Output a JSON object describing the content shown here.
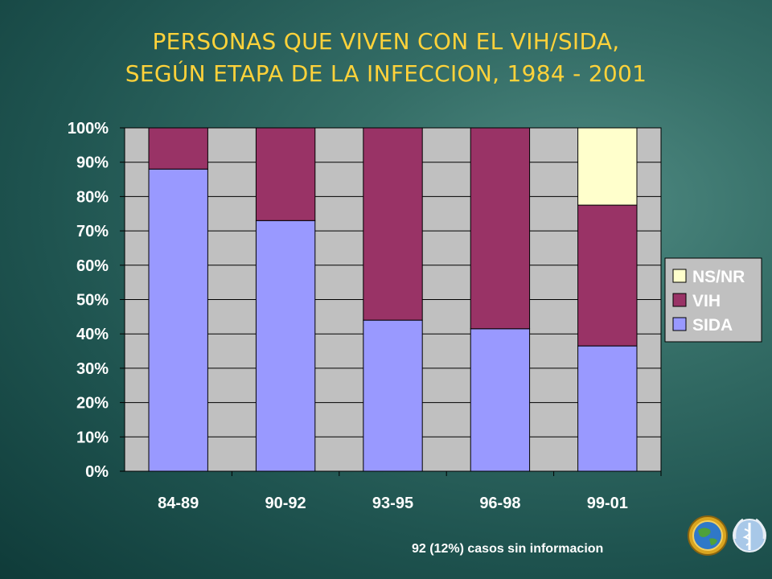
{
  "header": {
    "title_line1": "PERSONAS QUE VIVEN CON EL VIH/SIDA,",
    "title_line2": "SEGÚN ETAPA DE LA INFECCION, 1984 - 2001"
  },
  "chart_data": {
    "type": "bar",
    "stacked": true,
    "categories": [
      "84-89",
      "90-92",
      "93-95",
      "96-98",
      "99-01"
    ],
    "series": [
      {
        "name": "SIDA",
        "values": [
          88,
          73,
          44,
          41.5,
          36.5
        ],
        "color": "#9999ff"
      },
      {
        "name": "VIH",
        "values": [
          12,
          27,
          56,
          58.5,
          41
        ],
        "color": "#993366"
      },
      {
        "name": "NS/NR",
        "values": [
          0,
          0,
          0,
          0,
          22.5
        ],
        "color": "#ffffcc"
      }
    ],
    "ylim": [
      0,
      100
    ],
    "yticks": [
      "0%",
      "10%",
      "20%",
      "30%",
      "40%",
      "50%",
      "60%",
      "70%",
      "80%",
      "90%",
      "100%"
    ],
    "grid": true,
    "plot_background": "#c0c0c0",
    "legend_position": "right",
    "legend_order": [
      "NS/NR",
      "VIH",
      "SIDA"
    ]
  },
  "footnote": "92 (12%) casos sin informacion",
  "logos": [
    "globe-emblem-icon",
    "who-emblem-icon"
  ]
}
